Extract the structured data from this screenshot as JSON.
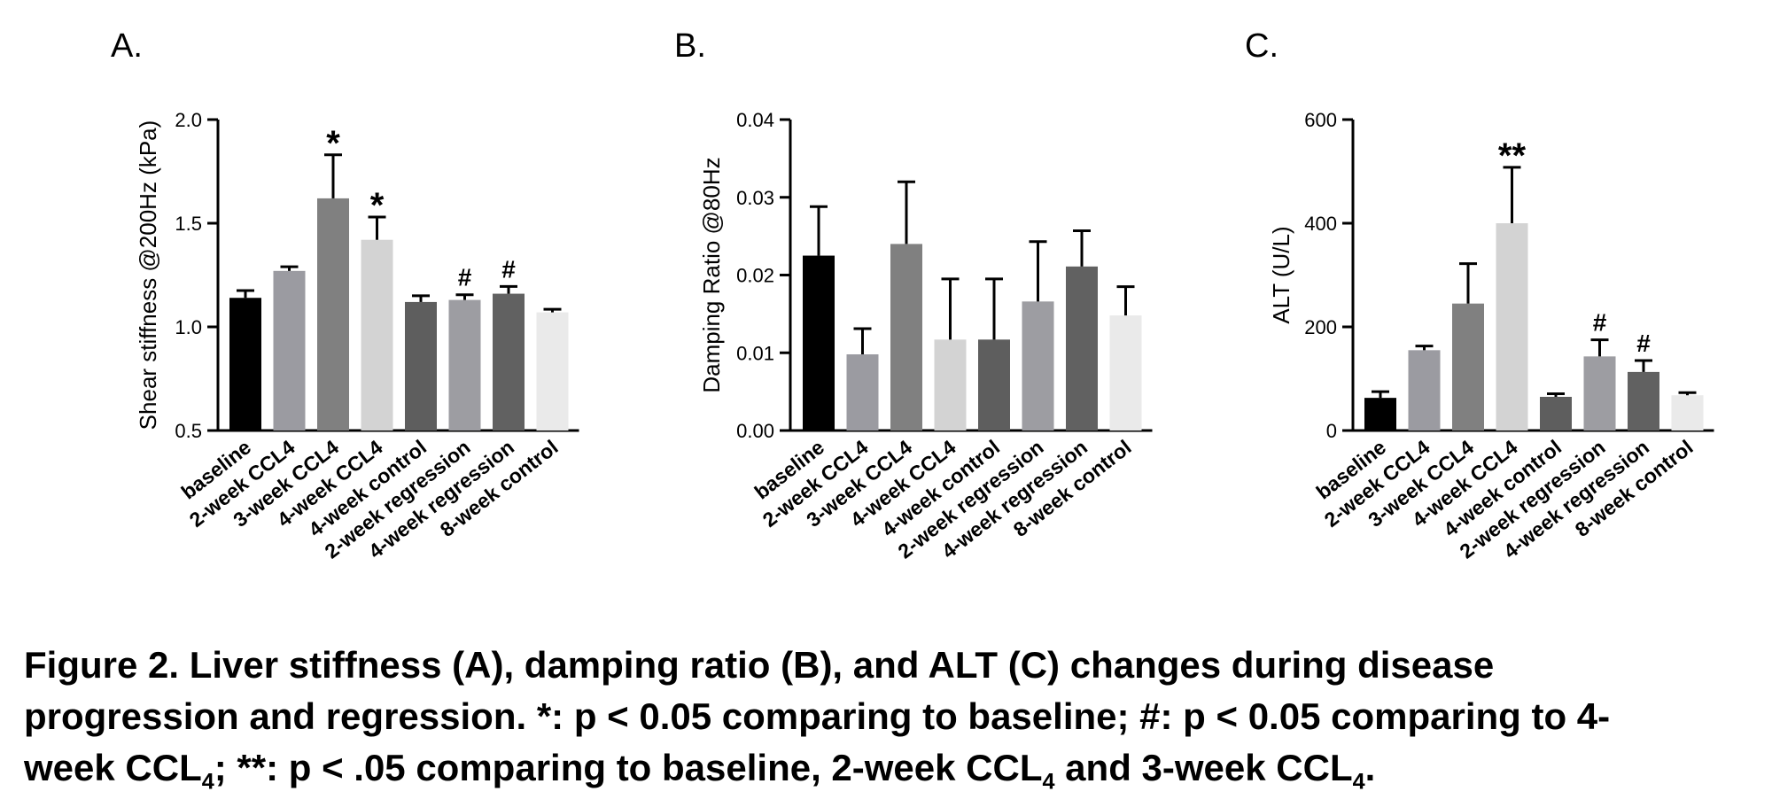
{
  "chart_data": [
    {
      "type": "bar",
      "panel_label": "A.",
      "title": "",
      "xlabel": "",
      "ylabel": "Shear stiffness @200Hz (kPa)",
      "ylim": [
        0.5,
        2.0
      ],
      "yticks": [
        "0.5",
        "1.0",
        "1.5",
        "2.0"
      ],
      "categories": [
        "baseline",
        "2-week CCL4",
        "3-week CCL4",
        "4-week CCL4",
        "4-week control",
        "2-week regression",
        "4-week regression",
        "8-week control"
      ],
      "values": [
        1.14,
        1.27,
        1.62,
        1.42,
        1.12,
        1.13,
        1.16,
        1.07
      ],
      "errors": [
        0.035,
        0.02,
        0.21,
        0.11,
        0.03,
        0.025,
        0.035,
        0.015
      ],
      "annotations": [
        "",
        "",
        "*",
        "*",
        "",
        "#",
        "#",
        ""
      ],
      "colors": [
        "#000000",
        "#9b9ba1",
        "#808080",
        "#d3d3d3",
        "#5e5e5e",
        "#9d9da2",
        "#616161",
        "#eaeaea"
      ]
    },
    {
      "type": "bar",
      "panel_label": "B.",
      "title": "",
      "xlabel": "",
      "ylabel": "Damping Ratio @80Hz",
      "ylim": [
        0.0,
        0.04
      ],
      "yticks": [
        "0.00",
        "0.01",
        "0.02",
        "0.03",
        "0.04"
      ],
      "categories": [
        "baseline",
        "2-week CCL4",
        "3-week CCL4",
        "4-week CCL4",
        "4-week control",
        "2-week regression",
        "4-week regression",
        "8-week control"
      ],
      "values": [
        0.0225,
        0.0098,
        0.024,
        0.0117,
        0.0117,
        0.0166,
        0.0211,
        0.0148
      ],
      "errors": [
        0.0063,
        0.0033,
        0.008,
        0.0078,
        0.0078,
        0.0077,
        0.0046,
        0.0037
      ],
      "annotations": [
        "",
        "",
        "",
        "",
        "",
        "",
        "",
        ""
      ],
      "colors": [
        "#000000",
        "#9b9ba1",
        "#808080",
        "#d3d3d3",
        "#5e5e5e",
        "#9d9da2",
        "#616161",
        "#eaeaea"
      ]
    },
    {
      "type": "bar",
      "panel_label": "C.",
      "title": "",
      "xlabel": "",
      "ylabel": "ALT (U/L)",
      "ylim": [
        0,
        600
      ],
      "yticks": [
        "0",
        "200",
        "400",
        "600"
      ],
      "categories": [
        "baseline",
        "2-week CCL4",
        "3-week CCL4",
        "4-week CCL4",
        "4-week control",
        "2-week regression",
        "4-week regression",
        "8-week control"
      ],
      "values": [
        63,
        155,
        245,
        400,
        65,
        143,
        113,
        68
      ],
      "errors": [
        12,
        8,
        77,
        108,
        6,
        32,
        22,
        5
      ],
      "annotations": [
        "",
        "",
        "",
        "**",
        "",
        "#",
        "#",
        ""
      ],
      "colors": [
        "#000000",
        "#9b9ba1",
        "#808080",
        "#d3d3d3",
        "#5e5e5e",
        "#9d9da2",
        "#616161",
        "#eaeaea"
      ]
    }
  ],
  "caption": {
    "line1": "Figure 2. Liver stiffness (A), damping ratio (B), and ALT (C) changes during disease",
    "line2": "progression and regression. *: p < 0.05 comparing to baseline; #: p < 0.05 comparing to 4-",
    "line3_a": "week CCL",
    "sub": "4",
    "line3_b": "; **: p < .05 comparing to baseline, 2-week CCL",
    "line3_c": " and 3-week CCL",
    "line3_d": "."
  }
}
